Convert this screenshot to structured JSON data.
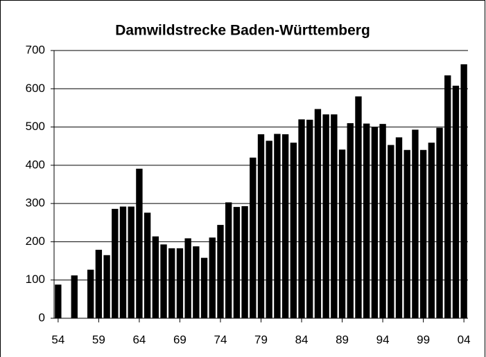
{
  "chart_data": {
    "type": "bar",
    "title": "Damwildstrecke Baden-Württemberg",
    "categories": [
      "54",
      null,
      null,
      null,
      null,
      "59",
      null,
      null,
      null,
      null,
      "64",
      null,
      null,
      null,
      null,
      "69",
      null,
      null,
      null,
      null,
      "74",
      null,
      null,
      null,
      null,
      "79",
      null,
      null,
      null,
      null,
      "84",
      null,
      null,
      null,
      null,
      "89",
      null,
      null,
      null,
      null,
      "94",
      null,
      null,
      null,
      null,
      "99",
      null,
      null,
      null,
      null,
      "04"
    ],
    "values": [
      88,
      0,
      112,
      0,
      127,
      179,
      165,
      286,
      292,
      292,
      391,
      276,
      214,
      193,
      183,
      183,
      209,
      188,
      158,
      211,
      244,
      303,
      291,
      293,
      420,
      481,
      464,
      482,
      481,
      459,
      520,
      519,
      547,
      533,
      533,
      441,
      510,
      580,
      509,
      500,
      508,
      453,
      473,
      440,
      493,
      440,
      459,
      498,
      635,
      608,
      664
    ],
    "color": "#000000",
    "ylim": [
      0,
      700
    ],
    "yticks": [
      0,
      100,
      200,
      300,
      400,
      500,
      600,
      700
    ],
    "grid": true
  }
}
